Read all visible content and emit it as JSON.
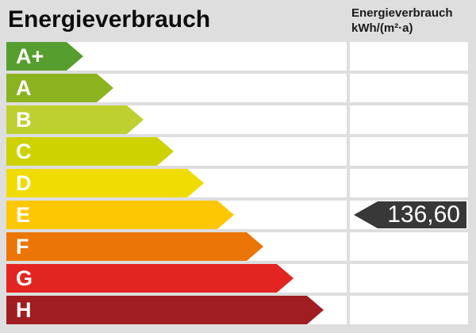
{
  "header": {
    "title": "Energieverbrauch",
    "unit_line1": "Energieverbrauch",
    "unit_line2": "kWh/(m²·a)"
  },
  "scale": {
    "rows": [
      {
        "label": "A+",
        "color": "#569E2E"
      },
      {
        "label": "A",
        "color": "#8AB31F"
      },
      {
        "label": "B",
        "color": "#BDD02F"
      },
      {
        "label": "C",
        "color": "#CDD200"
      },
      {
        "label": "D",
        "color": "#F0DC00"
      },
      {
        "label": "E",
        "color": "#FDC702"
      },
      {
        "label": "F",
        "color": "#EB7607"
      },
      {
        "label": "G",
        "color": "#E32522"
      },
      {
        "label": "H",
        "color": "#A01D21"
      }
    ]
  },
  "value": {
    "text": "136,60",
    "row": "E",
    "badge_color": "#383838",
    "text_color": "#FFFFFF"
  },
  "colors": {
    "background": "#DEDEDE",
    "cell": "#FFFFFF",
    "title_text": "#0D0D0D"
  },
  "chart_data": {
    "type": "bar",
    "title": "Energieverbrauch",
    "unit": "kWh/(m²·a)",
    "categories": [
      "A+",
      "A",
      "B",
      "C",
      "D",
      "E",
      "F",
      "G",
      "H"
    ],
    "bar_colors": [
      "#569E2E",
      "#8AB31F",
      "#BDD02F",
      "#CDD200",
      "#F0DC00",
      "#FDC702",
      "#EB7607",
      "#E32522",
      "#A01D21"
    ],
    "value": 136.6,
    "value_display": "136,60",
    "value_class": "E",
    "legend_position": "none",
    "layout_hint": "horizontal efficiency-class arrows of increasing length; dark value marker aligned with class E in right column"
  }
}
